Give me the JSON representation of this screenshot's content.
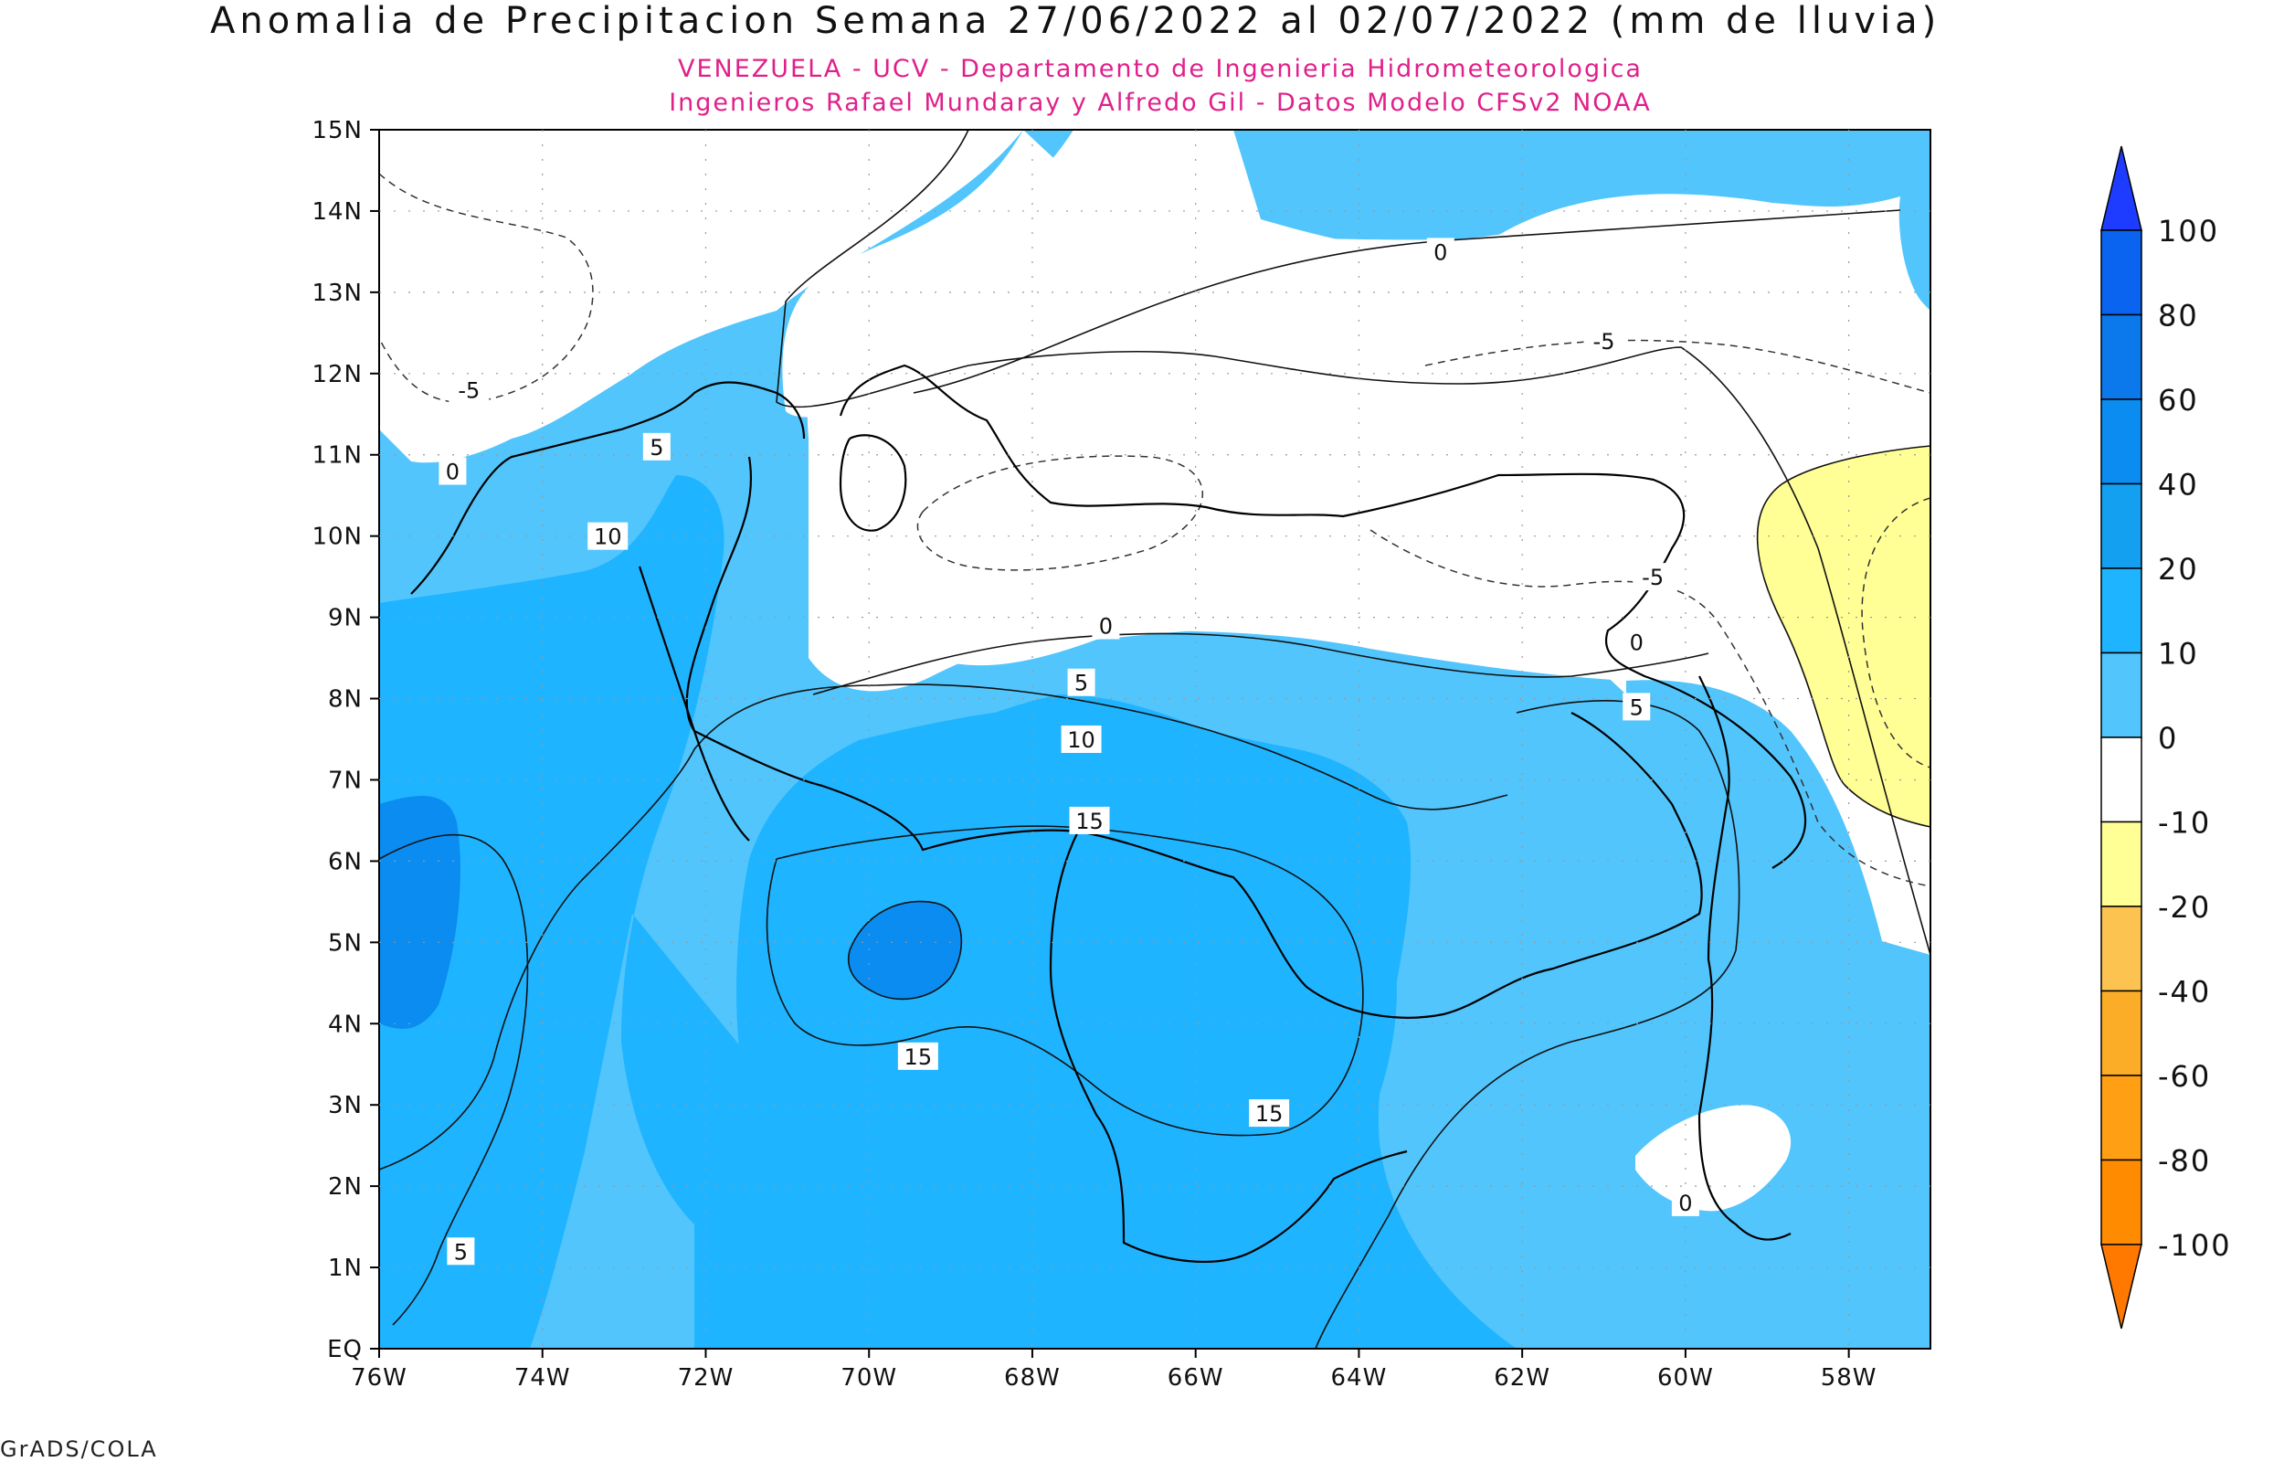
{
  "title": "Anomalia de Precipitacion Semana 27/06/2022 al 02/07/2022 (mm de lluvia)",
  "subtitle_1": "VENEZUELA - UCV - Departamento de Ingenieria Hidrometeorologica",
  "subtitle_2": "Ingenieros Rafael Mundaray y Alfredo Gil - Datos Modelo CFSv2 NOAA",
  "footer": "GrADS/COLA",
  "map": {
    "lon_range": [
      -76,
      -57
    ],
    "lat_range": [
      0,
      15
    ],
    "x_ticks": [
      "76W",
      "74W",
      "72W",
      "70W",
      "68W",
      "66W",
      "64W",
      "62W",
      "60W",
      "58W"
    ],
    "y_ticks": [
      "EQ",
      "1N",
      "2N",
      "3N",
      "4N",
      "5N",
      "6N",
      "7N",
      "8N",
      "9N",
      "10N",
      "11N",
      "12N",
      "13N",
      "14N",
      "15N"
    ],
    "contour_labels": [
      {
        "text": "0",
        "lon": -63.0,
        "lat": 13.5
      },
      {
        "text": "-5",
        "lon": -61.0,
        "lat": 12.4
      },
      {
        "text": "-5",
        "lon": -74.9,
        "lat": 11.8
      },
      {
        "text": "0",
        "lon": -75.1,
        "lat": 10.8
      },
      {
        "text": "5",
        "lon": -72.6,
        "lat": 11.1
      },
      {
        "text": "10",
        "lon": -73.2,
        "lat": 10.0
      },
      {
        "text": "-5",
        "lon": -60.4,
        "lat": 9.5
      },
      {
        "text": "0",
        "lon": -60.6,
        "lat": 8.7
      },
      {
        "text": "0",
        "lon": -67.1,
        "lat": 8.9
      },
      {
        "text": "5",
        "lon": -67.4,
        "lat": 8.2
      },
      {
        "text": "10",
        "lon": -67.4,
        "lat": 7.5
      },
      {
        "text": "5",
        "lon": -60.6,
        "lat": 7.9
      },
      {
        "text": "15",
        "lon": -67.3,
        "lat": 6.5
      },
      {
        "text": "15",
        "lon": -69.4,
        "lat": 3.6
      },
      {
        "text": "15",
        "lon": -65.1,
        "lat": 2.9
      },
      {
        "text": "0",
        "lon": -60.0,
        "lat": 1.8
      },
      {
        "text": "5",
        "lon": -75.0,
        "lat": 1.2
      }
    ]
  },
  "colorbar": {
    "labels": [
      "100",
      "80",
      "60",
      "40",
      "20",
      "10",
      "0",
      "-10",
      "-20",
      "-40",
      "-60",
      "-80",
      "-100"
    ],
    "colors": [
      "#1e3cff",
      "#0a64f0",
      "#0b78eb",
      "#0a8cf0",
      "#14a0f0",
      "#1fb4ff",
      "#52c5fc",
      "#ffffff",
      "#ffff96",
      "#fcc350",
      "#fcad28",
      "#ffa014",
      "#ff8c00",
      "#ff7800"
    ]
  }
}
